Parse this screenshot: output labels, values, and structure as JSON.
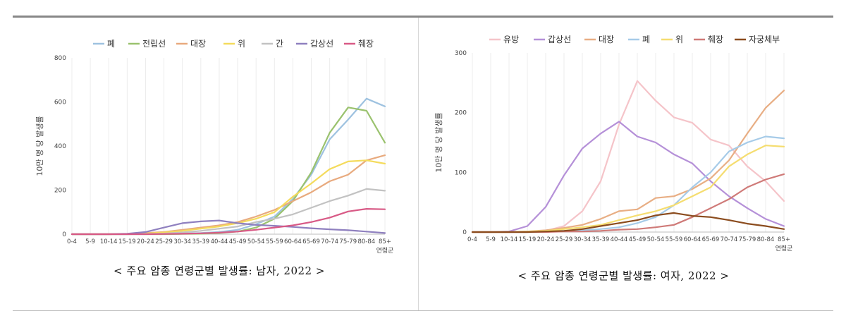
{
  "charts": [
    {
      "caption": "< 주요 암종 연령군별 발생률: 남자, 2022 >",
      "chart_data": {
        "type": "line",
        "ylabel": "10만 명 당 발생률",
        "xlabel": "연령군",
        "ylim": [
          0,
          800
        ],
        "yticks": [
          0,
          200,
          400,
          600,
          800
        ],
        "grid": "vertical",
        "legend": "top",
        "categories": [
          "0-4",
          "5-9",
          "10-14",
          "15-19",
          "20-24",
          "25-29",
          "30-34",
          "35-39",
          "40-44",
          "45-49",
          "50-54",
          "55-59",
          "60-64",
          "65-69",
          "70-74",
          "75-79",
          "80-84",
          "85+"
        ],
        "series": [
          {
            "name": "폐",
            "color": "#9ec2e0",
            "values": [
              0,
              0,
              0,
              0,
              1,
              2,
              3,
              5,
              10,
              20,
              45,
              80,
              160,
              270,
              430,
              520,
              615,
              580
            ]
          },
          {
            "name": "전립선",
            "color": "#9ac26e",
            "values": [
              0,
              0,
              0,
              0,
              0,
              0,
              1,
              2,
              5,
              12,
              30,
              70,
              150,
              280,
              460,
              575,
              560,
              415
            ]
          },
          {
            "name": "대장",
            "color": "#e8aa7e",
            "values": [
              0,
              0,
              0,
              1,
              5,
              10,
              20,
              30,
              40,
              55,
              80,
              110,
              150,
              190,
              240,
              270,
              335,
              358
            ]
          },
          {
            "name": "위",
            "color": "#f4db5c",
            "values": [
              0,
              0,
              0,
              1,
              3,
              8,
              15,
              25,
              35,
              50,
              70,
              100,
              170,
              230,
              295,
              330,
              335,
              320
            ]
          },
          {
            "name": "간",
            "color": "#c2c2c2",
            "values": [
              0,
              0,
              0,
              0,
              1,
              3,
              8,
              15,
              25,
              35,
              55,
              70,
              90,
              120,
              150,
              175,
              205,
              197
            ]
          },
          {
            "name": "갑상선",
            "color": "#8f80bf",
            "values": [
              0,
              0,
              0,
              2,
              10,
              30,
              50,
              58,
              62,
              50,
              42,
              38,
              33,
              27,
              22,
              18,
              12,
              5
            ]
          },
          {
            "name": "췌장",
            "color": "#d85a86",
            "values": [
              0,
              0,
              0,
              0,
              0,
              1,
              2,
              4,
              7,
              12,
              20,
              30,
              40,
              55,
              75,
              103,
              115,
              113
            ]
          }
        ]
      }
    },
    {
      "caption": "< 주요 암종 연령군별 발생률: 여자, 2022 >",
      "chart_data": {
        "type": "line",
        "ylabel": "10만 명 당 발생률",
        "xlabel": "연령군",
        "ylim": [
          0,
          300
        ],
        "yticks": [
          0,
          100,
          200,
          300
        ],
        "grid": "vertical",
        "legend": "top",
        "categories": [
          "0-4",
          "5-9",
          "10-14",
          "15-19",
          "20-24",
          "25-29",
          "30-34",
          "35-39",
          "40-44",
          "45-49",
          "50-54",
          "55-59",
          "60-64",
          "65-69",
          "70-74",
          "75-79",
          "80-84",
          "85+"
        ],
        "series": [
          {
            "name": "유방",
            "color": "#f5c4c9",
            "values": [
              0,
              0,
              0,
              0,
              2,
              10,
              35,
              85,
              180,
              253,
              220,
              192,
              183,
              155,
              145,
              110,
              85,
              52
            ]
          },
          {
            "name": "갑상선",
            "color": "#b590d8",
            "values": [
              0,
              0,
              1,
              10,
              42,
              95,
              140,
              165,
              185,
              160,
              150,
              130,
              115,
              85,
              60,
              40,
              22,
              10
            ]
          },
          {
            "name": "대장",
            "color": "#e8ae84",
            "values": [
              0,
              0,
              0,
              1,
              3,
              7,
              12,
              22,
              35,
              38,
              57,
              60,
              72,
              90,
              120,
              165,
              208,
              237
            ]
          },
          {
            "name": "폐",
            "color": "#a6cbe8",
            "values": [
              0,
              0,
              0,
              0,
              1,
              2,
              3,
              5,
              8,
              15,
              25,
              45,
              75,
              100,
              135,
              150,
              160,
              157
            ]
          },
          {
            "name": "위",
            "color": "#f5dd70",
            "values": [
              0,
              0,
              0,
              1,
              2,
              5,
              8,
              12,
              20,
              28,
              35,
              45,
              60,
              75,
              110,
              130,
              145,
              143
            ]
          },
          {
            "name": "췌장",
            "color": "#cf7a78",
            "values": [
              0,
              0,
              0,
              0,
              0,
              1,
              1,
              2,
              4,
              5,
              8,
              12,
              25,
              40,
              55,
              75,
              88,
              97
            ]
          },
          {
            "name": "자궁체부",
            "color": "#8b4c1e",
            "values": [
              0,
              0,
              0,
              0,
              1,
              2,
              5,
              10,
              15,
              20,
              28,
              32,
              27,
              25,
              20,
              14,
              10,
              5
            ]
          }
        ]
      }
    }
  ]
}
